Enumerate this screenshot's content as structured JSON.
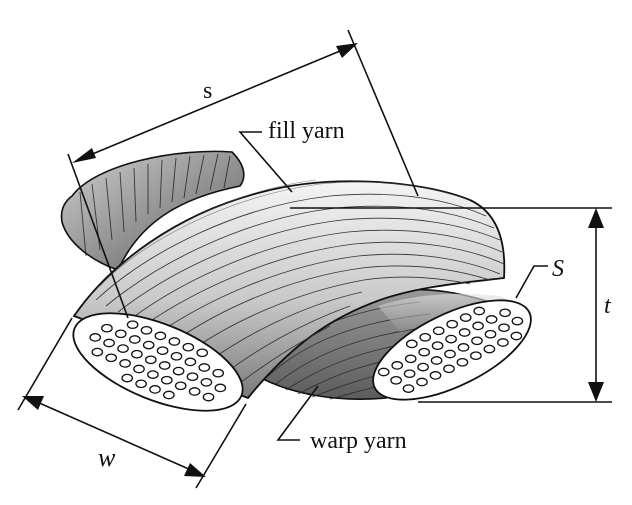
{
  "labels": {
    "pitch": "s",
    "fill_yarn": "fill yarn",
    "warp_yarn": "warp yarn",
    "cross_section_area": "S",
    "thickness": "t",
    "width": "w"
  },
  "colors": {
    "stroke": "#111111",
    "yarn_light": "#eeeeee",
    "yarn_mid": "#bdbdbd",
    "yarn_dark": "#6e6e6e",
    "fiber_end": "#ffffff"
  }
}
